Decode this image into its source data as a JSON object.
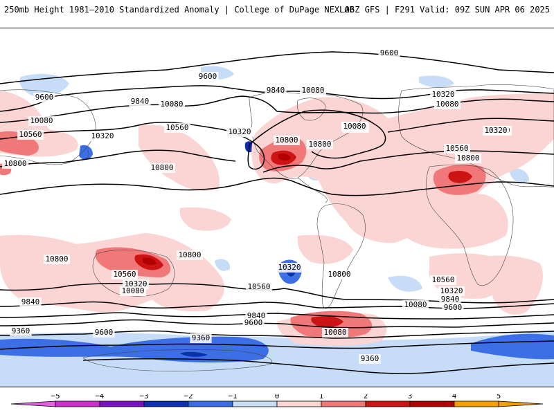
{
  "header": {
    "title_left": "250mb Height 1981–2010 Standardized Anomaly | College of DuPage NEXLAB",
    "title_right": "06Z GFS | F291 Valid: 09Z SUN APR 06 2025"
  },
  "colors": {
    "neg5": "#cc33cc",
    "neg4": "#7a10c0",
    "neg3": "#0a2fb0",
    "neg2": "#3c6fe6",
    "neg1": "#c6dcf7",
    "pos1": "#fbd4d4",
    "pos2": "#f07878",
    "pos3": "#cc1414",
    "pos4": "#b00000",
    "pos5": "#f4a000"
  },
  "colorbar": {
    "ticks": [
      "−5",
      "−4",
      "−3",
      "−2",
      "−1",
      "0",
      "1",
      "2",
      "3",
      "4",
      "5"
    ]
  },
  "contour_labels": [
    "9600",
    "9600",
    "9600",
    "9840",
    "9840",
    "10080",
    "10080",
    "10080",
    "10320",
    "10320",
    "10320",
    "10560",
    "10560",
    "10560",
    "10800",
    "10800",
    "10800",
    "10800",
    "10800",
    "10800",
    "10800",
    "10560",
    "10320",
    "10080",
    "10320",
    "10560",
    "10800",
    "10560",
    "10320",
    "10080",
    "9840",
    "9600",
    "9840",
    "9600",
    "10080",
    "9360",
    "9600",
    "9360",
    "9360",
    "10080",
    "10080",
    "10560",
    "10320",
    "9840",
    "10080",
    "10080",
    "10320"
  ]
}
